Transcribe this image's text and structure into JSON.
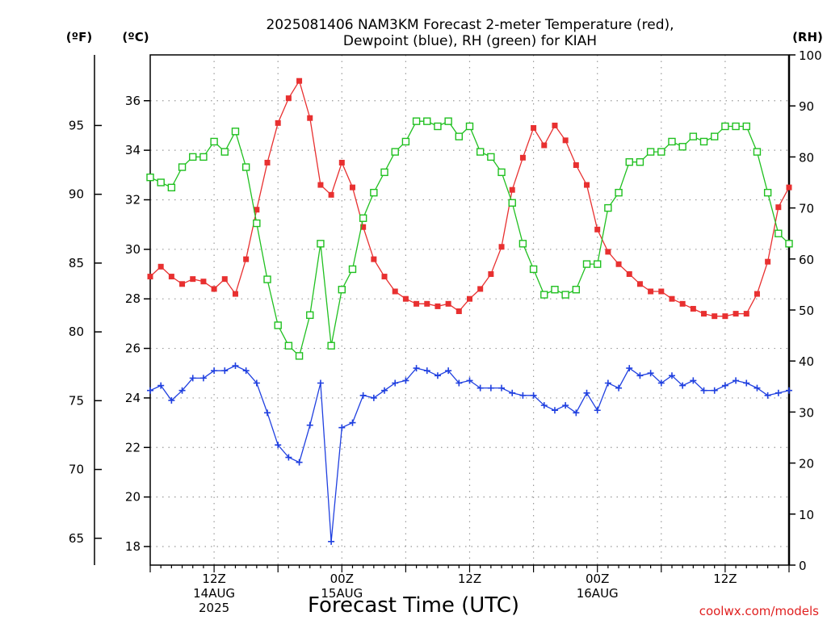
{
  "chart_data": {
    "type": "line",
    "title_lines": [
      "2025081406 NAM3KM Forecast 2-meter Temperature (red),",
      "Dewpoint (blue), RH (green) for KIAH"
    ],
    "xlabel": "Forecast Time (UTC)",
    "credit": "coolwx.com/models",
    "axis_units": {
      "f": "(ºF)",
      "c": "(ºC)",
      "rh": "(RH)"
    },
    "xlim_hours": [
      6,
      66
    ],
    "ylim_c": [
      17.25,
      37.85
    ],
    "ylim_rh": [
      0,
      100
    ],
    "grid": true,
    "celsius_ticks": [
      "18",
      "20",
      "22",
      "24",
      "26",
      "28",
      "30",
      "32",
      "34",
      "36"
    ],
    "fahrenheit_ticks": [
      "65",
      "70",
      "75",
      "80",
      "85",
      "90",
      "95"
    ],
    "rh_ticks": [
      "0",
      "10",
      "20",
      "30",
      "40",
      "50",
      "60",
      "70",
      "80",
      "90",
      "100"
    ],
    "x_tick_hours": [
      12,
      24,
      36,
      48,
      60
    ],
    "x_tick_labels": [
      [
        "12Z",
        "14AUG",
        "2025"
      ],
      [
        "00Z",
        "15AUG"
      ],
      [
        "12Z"
      ],
      [
        "00Z",
        "16AUG"
      ],
      [
        "12Z"
      ]
    ],
    "hours": [
      6,
      7,
      8,
      9,
      10,
      11,
      12,
      13,
      14,
      15,
      16,
      17,
      18,
      19,
      20,
      21,
      22,
      23,
      24,
      25,
      26,
      27,
      28,
      29,
      30,
      31,
      32,
      33,
      34,
      35,
      36,
      37,
      38,
      39,
      40,
      41,
      42,
      43,
      44,
      45,
      46,
      47,
      48,
      49,
      50,
      51,
      52,
      53,
      54,
      55,
      56,
      57,
      58,
      59,
      60,
      61,
      62,
      63,
      64,
      65,
      66
    ],
    "series": [
      {
        "name": "2-meter Temperature",
        "axis": "celsius",
        "color": "#e83030",
        "marker": "filled-square",
        "values": [
          28.9,
          29.3,
          28.9,
          28.6,
          28.8,
          28.7,
          28.4,
          28.8,
          28.2,
          29.6,
          31.6,
          33.5,
          35.1,
          36.1,
          36.8,
          35.3,
          32.6,
          32.2,
          33.5,
          32.5,
          30.9,
          29.6,
          28.9,
          28.3,
          28.0,
          27.8,
          27.8,
          27.7,
          27.8,
          27.5,
          28.0,
          28.4,
          29.0,
          30.1,
          32.4,
          33.7,
          34.9,
          34.2,
          35.0,
          34.4,
          33.4,
          32.6,
          30.8,
          29.9,
          29.4,
          29.0,
          28.6,
          28.3,
          28.3,
          28.0,
          27.8,
          27.6,
          27.4,
          27.3,
          27.3,
          27.4,
          27.4,
          28.2,
          29.5,
          31.7,
          32.5
        ]
      },
      {
        "name": "Dewpoint",
        "axis": "celsius",
        "color": "#2040e0",
        "marker": "plus",
        "values": [
          24.3,
          24.5,
          23.9,
          24.3,
          24.8,
          24.8,
          25.1,
          25.1,
          25.3,
          25.1,
          24.6,
          23.4,
          22.1,
          21.6,
          21.4,
          22.9,
          24.6,
          18.2,
          22.8,
          23.0,
          24.1,
          24.0,
          24.3,
          24.6,
          24.7,
          25.2,
          25.1,
          24.9,
          25.1,
          24.6,
          24.7,
          24.4,
          24.4,
          24.4,
          24.2,
          24.1,
          24.1,
          23.7,
          23.5,
          23.7,
          23.4,
          24.2,
          23.5,
          24.6,
          24.4,
          25.2,
          24.9,
          25.0,
          24.6,
          24.9,
          24.5,
          24.7,
          24.3,
          24.3,
          24.5,
          24.7,
          24.6,
          24.4,
          24.1,
          24.2,
          24.3
        ]
      },
      {
        "name": "RH",
        "axis": "rh",
        "color": "#20c020",
        "marker": "open-square",
        "values": [
          76,
          75,
          74,
          78,
          80,
          80,
          83,
          81,
          85,
          78,
          67,
          56,
          47,
          43,
          41,
          49,
          63,
          43,
          54,
          58,
          68,
          73,
          77,
          81,
          83,
          87,
          87,
          86,
          87,
          84,
          86,
          81,
          80,
          77,
          71,
          63,
          58,
          53,
          54,
          53,
          54,
          59,
          59,
          70,
          73,
          79,
          79,
          81,
          81,
          83,
          82,
          84,
          83,
          84,
          86,
          86,
          86,
          81,
          73,
          65,
          63
        ]
      }
    ]
  }
}
